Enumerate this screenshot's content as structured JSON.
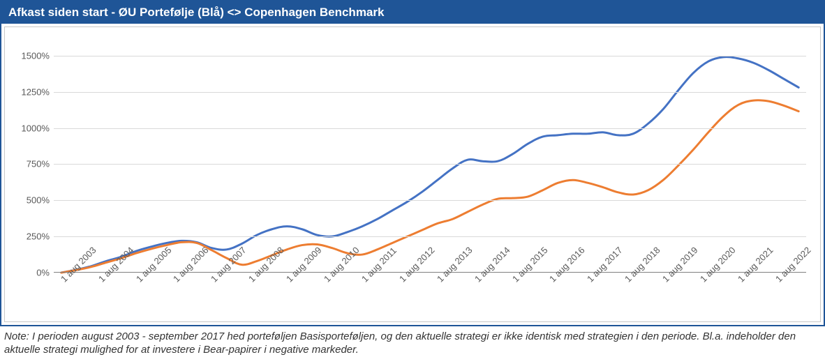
{
  "chart": {
    "type": "line",
    "title": "Afkast siden start - ØU Portefølje (Blå) <> Copenhagen Benchmark",
    "title_color": "#ffffff",
    "title_bg": "#1f5597",
    "border_color": "#1f5597",
    "inner_border_color": "#c8c8c8",
    "background_color": "#ffffff",
    "grid_color": "#d9d9d9",
    "axis_color": "#808080",
    "tick_label_color": "#595959",
    "tick_fontsize": 13,
    "ylim": [
      0,
      1600
    ],
    "ytick_step": 250,
    "ytick_labels": [
      "0%",
      "250%",
      "500%",
      "750%",
      "1000%",
      "1250%",
      "1500%"
    ],
    "x_labels": [
      "1 aug 2003",
      "1 aug 2004",
      "1 aug 2005",
      "1 aug 2006",
      "1 aug 2007",
      "1 aug 2008",
      "1 aug 2009",
      "1 aug 2010",
      "1 aug 2011",
      "1 aug 2012",
      "1 aug 2013",
      "1 aug 2014",
      "1 aug 2015",
      "1 aug 2016",
      "1 aug 2017",
      "1 aug 2018",
      "1 aug 2019",
      "1 aug 2020",
      "1 aug 2021",
      "1 aug 2022"
    ],
    "line_width": 3,
    "series": [
      {
        "name": "ØU Portefølje (Blå)",
        "color": "#4472c4",
        "half_year_values": [
          0,
          20,
          45,
          80,
          110,
          150,
          180,
          205,
          220,
          210,
          170,
          160,
          200,
          260,
          300,
          320,
          300,
          260,
          250,
          280,
          320,
          370,
          430,
          490,
          560,
          640,
          720,
          780,
          770,
          770,
          820,
          890,
          940,
          950,
          960,
          960,
          970,
          950,
          960,
          1030,
          1130,
          1260,
          1380,
          1460,
          1490,
          1480,
          1450,
          1400,
          1340,
          1280
        ]
      },
      {
        "name": "Copenhagen Benchmark",
        "color": "#ed7d31",
        "half_year_values": [
          0,
          18,
          40,
          70,
          100,
          135,
          165,
          190,
          210,
          205,
          155,
          100,
          55,
          80,
          120,
          160,
          190,
          195,
          170,
          135,
          125,
          160,
          205,
          250,
          295,
          340,
          370,
          420,
          470,
          510,
          515,
          525,
          570,
          620,
          640,
          620,
          590,
          555,
          540,
          570,
          640,
          740,
          850,
          970,
          1080,
          1160,
          1190,
          1185,
          1155,
          1115
        ]
      }
    ]
  },
  "note": "Note: I perioden august 2003 - september 2017 hed porteføljen Basisporteføljen, og den aktuelle strategi er ikke identisk med strategien i den periode. Bl.a. indeholder den aktuelle strategi mulighed for at investere i Bear-papirer i negative markeder."
}
